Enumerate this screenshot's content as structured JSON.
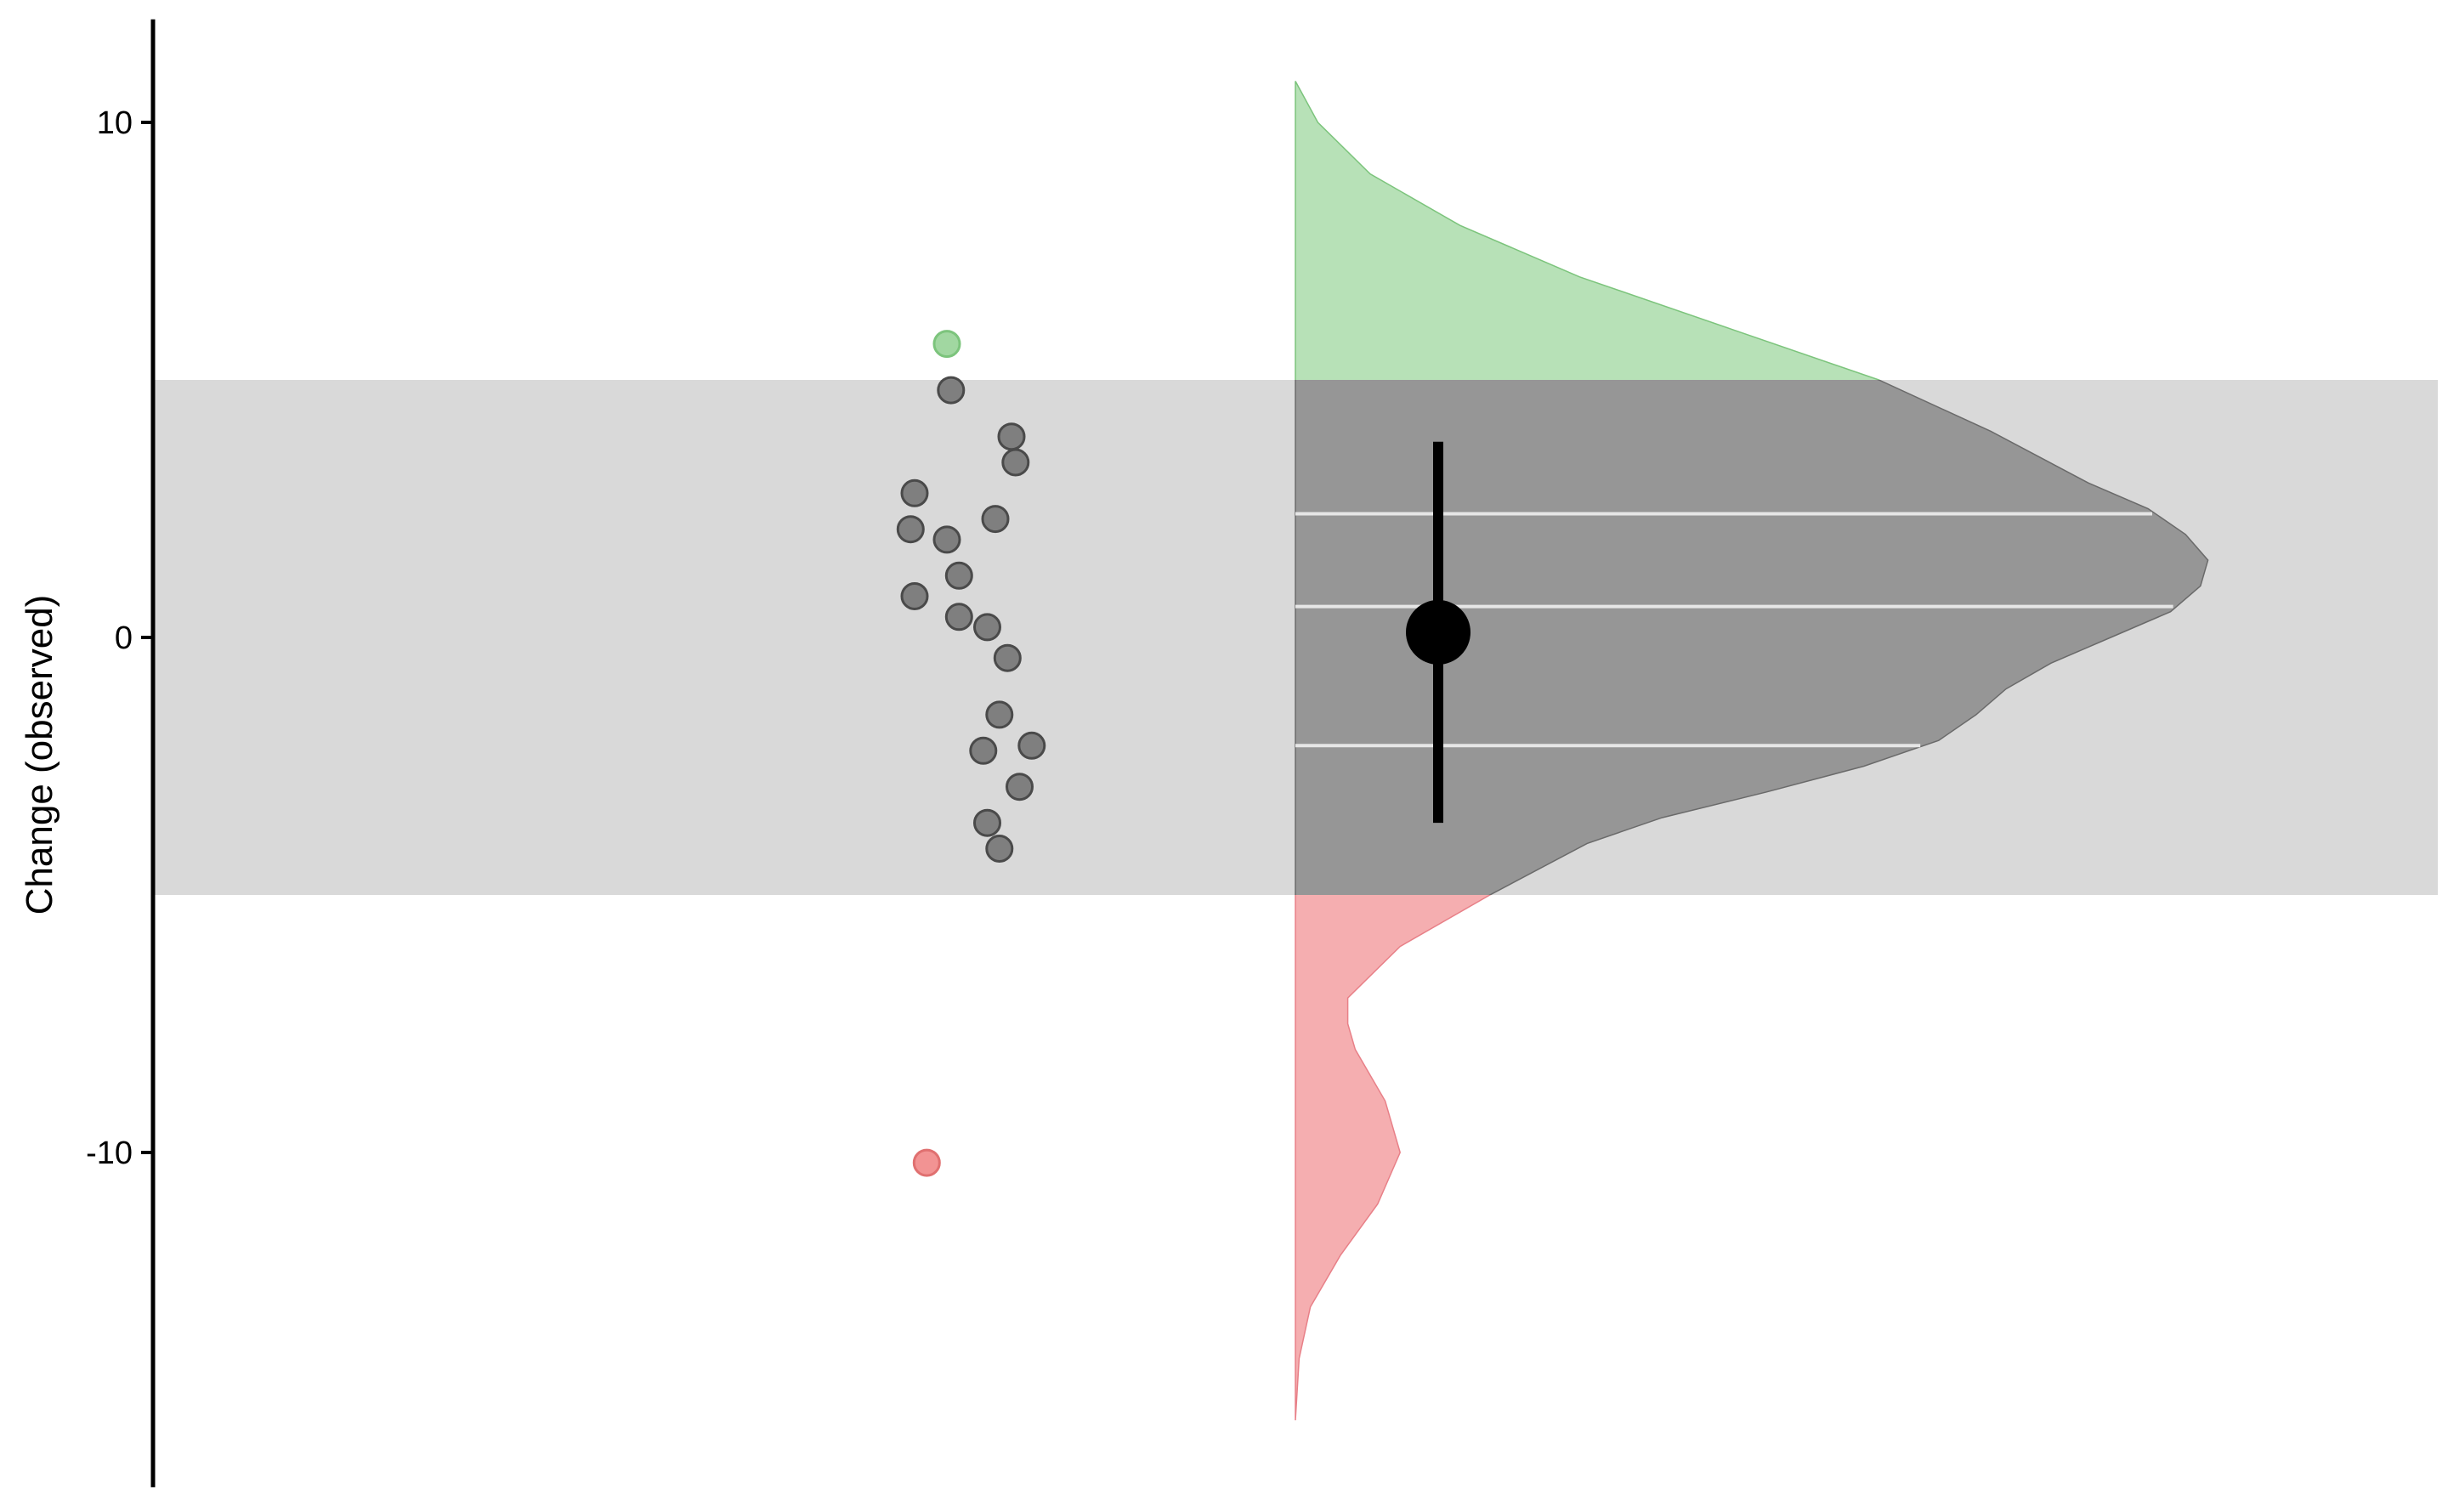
{
  "chart_data": {
    "type": "scatter",
    "title": "",
    "xlabel": "",
    "ylabel": "Change (observed)",
    "ylim": [
      -16.5,
      12
    ],
    "yticks": [
      10,
      0,
      -10
    ],
    "grid": false,
    "legend": "none",
    "band": {
      "low": -5,
      "high": 5,
      "label": ""
    },
    "colors": {
      "band": "#d9d9d9",
      "point_inside": "#6f6f6f",
      "point_above": "#90d090",
      "point_below": "#f08080",
      "density_inside": "#969696",
      "density_above": "#b7e1b7",
      "density_below": "#f5aeb0",
      "quantile_line": "#e6e6e6",
      "summary": "#000000"
    },
    "points": [
      {
        "x": 0.08,
        "y": 5.7
      },
      {
        "x": 0.09,
        "y": 4.8
      },
      {
        "x": 0.24,
        "y": 3.9
      },
      {
        "x": 0.25,
        "y": 3.4
      },
      {
        "x": 0.0,
        "y": 2.8
      },
      {
        "x": 0.2,
        "y": 2.3
      },
      {
        "x": -0.01,
        "y": 2.1
      },
      {
        "x": 0.08,
        "y": 1.9
      },
      {
        "x": 0.11,
        "y": 1.2
      },
      {
        "x": 0.0,
        "y": 0.8
      },
      {
        "x": 0.11,
        "y": 0.4
      },
      {
        "x": 0.18,
        "y": 0.2
      },
      {
        "x": 0.23,
        "y": -0.4
      },
      {
        "x": 0.21,
        "y": -1.5
      },
      {
        "x": 0.29,
        "y": -2.1
      },
      {
        "x": 0.17,
        "y": -2.2
      },
      {
        "x": 0.26,
        "y": -2.9
      },
      {
        "x": 0.18,
        "y": -3.6
      },
      {
        "x": 0.21,
        "y": -4.1
      },
      {
        "x": 0.03,
        "y": -10.2
      }
    ],
    "density": [
      [
        10.8,
        0.0
      ],
      [
        10.0,
        0.03
      ],
      [
        9.0,
        0.1
      ],
      [
        8.0,
        0.22
      ],
      [
        7.0,
        0.38
      ],
      [
        6.0,
        0.58
      ],
      [
        5.0,
        0.78
      ],
      [
        4.0,
        0.93
      ],
      [
        3.0,
        1.06
      ],
      [
        2.5,
        1.14
      ],
      [
        2.0,
        1.19
      ],
      [
        1.5,
        1.22
      ],
      [
        1.0,
        1.21
      ],
      [
        0.5,
        1.17
      ],
      [
        0.0,
        1.09
      ],
      [
        -0.5,
        1.01
      ],
      [
        -1.0,
        0.95
      ],
      [
        -1.5,
        0.91
      ],
      [
        -2.0,
        0.86
      ],
      [
        -2.5,
        0.76
      ],
      [
        -3.0,
        0.63
      ],
      [
        -3.5,
        0.49
      ],
      [
        -4.0,
        0.39
      ],
      [
        -5.0,
        0.26
      ],
      [
        -6.0,
        0.14
      ],
      [
        -7.0,
        0.07
      ],
      [
        -7.5,
        0.07
      ],
      [
        -8.0,
        0.08
      ],
      [
        -9.0,
        0.12
      ],
      [
        -10.0,
        0.14
      ],
      [
        -11.0,
        0.11
      ],
      [
        -12.0,
        0.06
      ],
      [
        -13.0,
        0.02
      ],
      [
        -14.0,
        0.005
      ],
      [
        -15.2,
        0.0
      ]
    ],
    "quantile_lines": [
      2.4,
      0.6,
      -2.1
    ],
    "summary": {
      "mean": 0.1,
      "ci_low": -3.6,
      "ci_high": 3.8
    }
  }
}
